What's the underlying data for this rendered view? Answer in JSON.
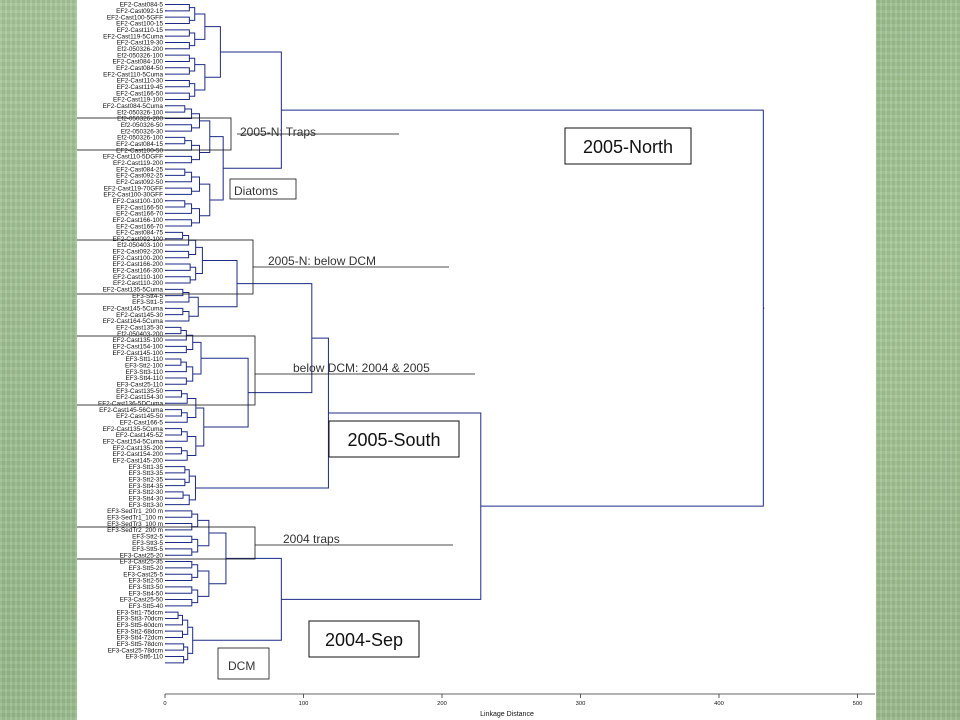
{
  "leaves": [
    "EF2-Cast084-5",
    "EF2-Cast092-15",
    "EF2-Cast100-5GFF",
    "EF2-Cast100-15",
    "EF2-Cast110-15",
    "EF2-Cast119-5Cuma",
    "EF2-Cast119-30",
    "Ef2-050326-200",
    "Ef2-050326-100",
    "EF2-Cast084-100",
    "EF2-Cast084-50",
    "EF2-Cast110-5Cuma",
    "EF2-Cast110-30",
    "EF2-Cast119-45",
    "EF2-Cast166-50",
    "EF2-Cast119-100",
    "EF2-Cast084-5Cuma",
    "Ef2-050326-100",
    "Ef2-050326-200",
    "Ef2-050326-50",
    "Ef2-050326-30",
    "Ef2-050326-100",
    "EF2-Cast084-15",
    "EF2-Cast100-50",
    "EF2-Cast110-5DGFF",
    "EF2-Cast119-200",
    "EF2-Cast084-25",
    "EF2-Cast092-25",
    "EF2-Cast092-50",
    "EF2-Cast119-70GFF",
    "EF2-Cast100-30GFF",
    "EF2-Cast100-100",
    "EF2-Cast166-50",
    "EF2-Cast166-70",
    "EF2-Cast166-100",
    "EF2-Cast166-70",
    "EF2-Cast084-75",
    "EF2-Cast092-100",
    "Ef2-050403-100",
    "EF2-Cast092-200",
    "EF2-Cast100-200",
    "EF2-Cast166-200",
    "EF2-Cast166-300",
    "EF2-Cast110-100",
    "EF2-Cast110-200",
    "EF2-Cast135-5Cuma",
    "EF3-Stt4-5",
    "EF3-Stt1-5",
    "EF2-Cast145-5Cuma",
    "EF2-Cast145-30",
    "EF2-Cast164-5Cuma",
    "EF2-Cast135-30",
    "Ef2-050403-200",
    "EF2-Cast135-100",
    "EF2-Cast154-100",
    "EF2-Cast145-100",
    "EF3-Stt1-110",
    "EF3-Stt2-100",
    "EF3-Stt3-110",
    "EF3-Stt4-110",
    "EF3-Cast25-110",
    "EF3-Cast135-50",
    "EF2-Cast154-30",
    "EF2-Cast136-5DCuma",
    "EF2-Cast145-56Cuma",
    "EF2-Cast145-50",
    "EF2-Cast166-5",
    "EF2-Cast135-5Cuma",
    "EF2-Cast145-5Z",
    "EF2-Cast154-5Cuma",
    "EF2-Cast135-200",
    "EF2-Cast154-200",
    "EF2-Cast145-200",
    "EF3-Stt1-35",
    "EF3-Stt3-35",
    "EF3-Stt2-35",
    "EF3-Stt4-35",
    "EF3-Stt2-30",
    "EF3-Stt4-30",
    "EF3-Stt3-30",
    "EF3-SedTr1_200 m",
    "EF3-SedTr1_100 m",
    "EF3-SedTr3_100 m",
    "EF3-SedTr2_200 m",
    "EF3-Stt2-5",
    "EF3-Stt3-5",
    "EF3-Stt5-5",
    "EF3-Cast25-20",
    "EF3-Cast25-35",
    "EF3-Stt5-20",
    "EF3-Cast25-5",
    "EF3-Stt2-50",
    "EF3-Stt3-50",
    "EF3-Stt4-50",
    "EF3-Cast25-50",
    "EF3-Stt5-40",
    "EF3-Stt1-75dcm",
    "EF3-Stt3-70dcm",
    "EF3-Stt5-60dcm",
    "EF3-Stt2-68dcm",
    "EF3-Stt4-72dcm",
    "EF3-Stt5-78dcm",
    "EF3-Cast25-78dcm",
    "EF3-Stt6-110"
  ],
  "axis": {
    "title": "Linkage Distance",
    "ticks": [
      "0",
      "100",
      "200",
      "300",
      "400",
      "500"
    ],
    "min": 0,
    "max": 500
  },
  "annotations": {
    "traps_2005n": "2005-N: Traps",
    "diatoms": "Diatoms",
    "below_dcm_2005n": "2005-N: below DCM",
    "below_dcm_2004_2005": "below DCM: 2004 & 2005",
    "traps_2004": "2004 traps",
    "dcm": "DCM"
  },
  "clusters": {
    "north": "2005-North",
    "south": "2005-South",
    "sep": "2004-Sep"
  },
  "colors": {
    "line": "#1d2b86",
    "background": "#a3c494"
  }
}
